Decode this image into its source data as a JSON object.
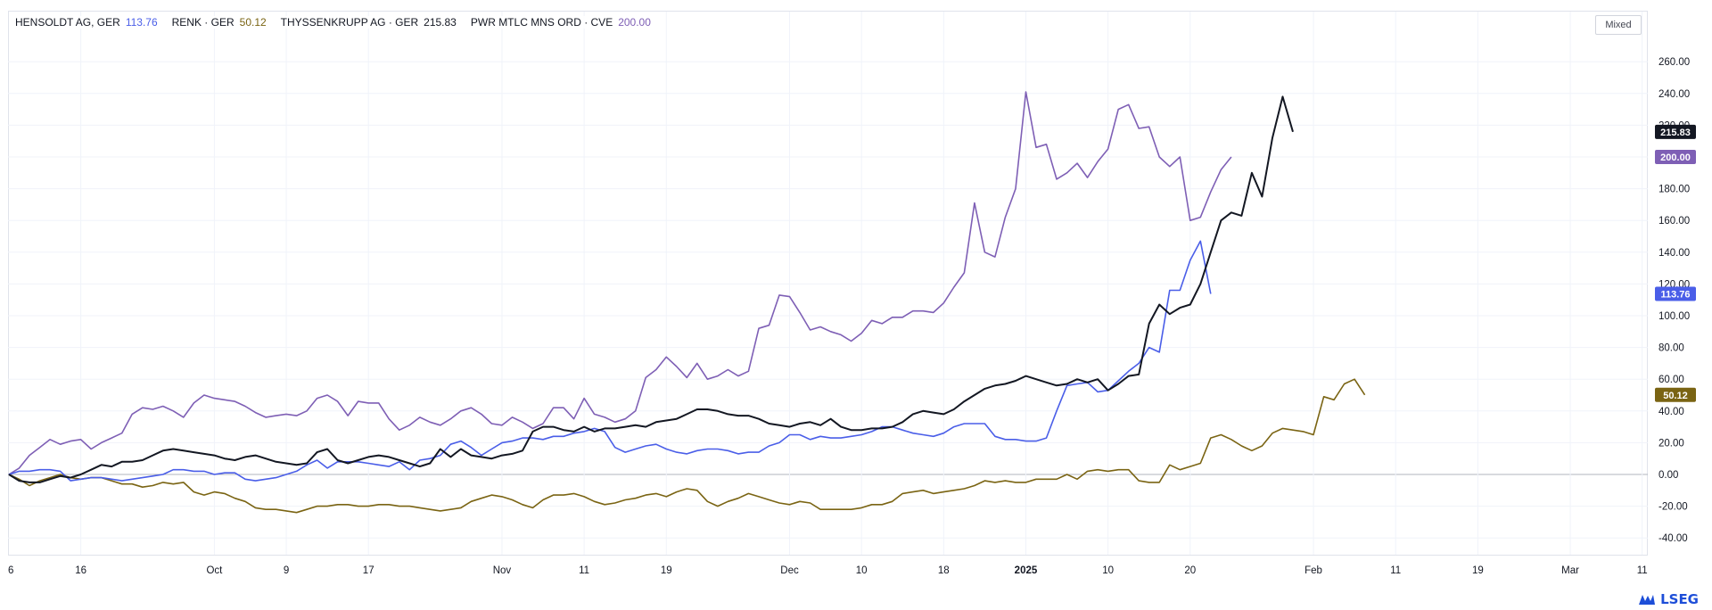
{
  "chart_data": {
    "type": "line",
    "scale_mode": "Mixed",
    "y_unit": "percent change",
    "ylim": [
      -50,
      275
    ],
    "y_ticks": [
      260,
      240,
      220,
      200,
      180,
      160,
      140,
      120,
      100,
      80,
      60,
      40,
      20,
      0,
      -20,
      -40
    ],
    "y_tick_labels": [
      "260.00",
      "240.00",
      "220.00",
      "200.00",
      "180.00",
      "160.00",
      "140.00",
      "120.00",
      "100.00",
      "80.00",
      "60.00",
      "40.00",
      "20.00",
      "0.00",
      "-20.00",
      "-40.00"
    ],
    "x_index_range": [
      -3,
      155
    ],
    "x_ticks": [
      {
        "label": "6",
        "index": -2,
        "bold": false
      },
      {
        "label": "16",
        "index": 7,
        "bold": false
      },
      {
        "label": "Oct",
        "index": 20,
        "bold": false
      },
      {
        "label": "9",
        "index": 27,
        "bold": false
      },
      {
        "label": "17",
        "index": 35,
        "bold": false
      },
      {
        "label": "Nov",
        "index": 48,
        "bold": false
      },
      {
        "label": "11",
        "index": 56,
        "bold": false
      },
      {
        "label": "19",
        "index": 64,
        "bold": false
      },
      {
        "label": "Dec",
        "index": 76,
        "bold": false
      },
      {
        "label": "10",
        "index": 83,
        "bold": false
      },
      {
        "label": "18",
        "index": 91,
        "bold": false
      },
      {
        "label": "2025",
        "index": 99,
        "bold": true
      },
      {
        "label": "10",
        "index": 107,
        "bold": false
      },
      {
        "label": "20",
        "index": 115,
        "bold": false
      },
      {
        "label": "Feb",
        "index": 127,
        "bold": false
      },
      {
        "label": "11",
        "index": 135,
        "bold": false
      },
      {
        "label": "19",
        "index": 143,
        "bold": false
      },
      {
        "label": "Mar",
        "index": 152,
        "bold": false
      },
      {
        "label": "11",
        "index": 159,
        "bold": false
      }
    ],
    "series": [
      {
        "name": "HENSOLDT AG, GER",
        "last_label": "113.76",
        "color": "#4a5ee8",
        "values": [
          0,
          2,
          2,
          3,
          3,
          2,
          -4,
          -3,
          -2,
          -2,
          -3,
          -4,
          -3,
          -2,
          -1,
          0,
          3,
          3,
          2,
          2,
          0,
          1,
          1,
          -3,
          -4,
          -3,
          -2,
          0,
          2,
          6,
          9,
          4,
          8,
          8,
          8,
          7,
          6,
          5,
          8,
          3,
          9,
          10,
          12,
          19,
          21,
          17,
          12,
          16,
          20,
          21,
          23,
          23,
          22,
          24,
          24,
          26,
          27,
          29,
          27,
          17,
          14,
          16,
          18,
          19,
          16,
          14,
          13,
          15,
          16,
          16,
          15,
          13,
          14,
          14,
          18,
          20,
          25,
          25,
          22,
          24,
          23,
          23,
          24,
          25,
          27,
          30,
          30,
          28,
          26,
          25,
          24,
          26,
          30,
          32,
          32,
          32,
          24,
          22,
          22,
          21,
          21,
          23,
          40,
          56,
          57,
          58,
          52,
          53,
          59,
          65,
          70,
          80,
          77,
          116,
          116,
          135,
          147,
          113.76
        ]
      },
      {
        "name": "RENK · GER",
        "last_label": "50.12",
        "color": "#7a6413",
        "values": [
          0,
          -3,
          -7,
          -4,
          -2,
          0,
          -2,
          -3,
          -2,
          -2,
          -4,
          -6,
          -6,
          -8,
          -7,
          -5,
          -6,
          -5,
          -11,
          -13,
          -11,
          -12,
          -15,
          -17,
          -21,
          -22,
          -22,
          -23,
          -24,
          -22,
          -20,
          -20,
          -19,
          -19,
          -20,
          -20,
          -19,
          -19,
          -20,
          -20,
          -21,
          -22,
          -23,
          -22,
          -21,
          -17,
          -15,
          -13,
          -14,
          -16,
          -19,
          -21,
          -16,
          -13,
          -13,
          -12,
          -14,
          -17,
          -19,
          -18,
          -16,
          -15,
          -13,
          -12,
          -14,
          -11,
          -9,
          -10,
          -17,
          -20,
          -17,
          -15,
          -12,
          -14,
          -16,
          -18,
          -19,
          -17,
          -18,
          -22,
          -22,
          -22,
          -22,
          -21,
          -19,
          -19,
          -17,
          -12,
          -11,
          -10,
          -12,
          -11,
          -10,
          -9,
          -7,
          -4,
          -5,
          -4,
          -5,
          -5,
          -3,
          -3,
          -3,
          0,
          -3,
          2,
          3,
          2,
          3,
          3,
          -4,
          -5,
          -5,
          6,
          3,
          5,
          7,
          23,
          25,
          22,
          18,
          15,
          18,
          26,
          29,
          28,
          27,
          25,
          49,
          47,
          57,
          60,
          50.12
        ]
      },
      {
        "name": "THYSSENKRUPP AG · GER",
        "last_label": "215.83",
        "color": "#131722",
        "values": [
          0,
          -4,
          -5,
          -5,
          -3,
          -1,
          -2,
          0,
          3,
          6,
          5,
          8,
          8,
          9,
          12,
          15,
          16,
          15,
          14,
          13,
          12,
          10,
          9,
          11,
          12,
          10,
          8,
          7,
          6,
          7,
          14,
          16,
          9,
          7,
          9,
          11,
          12,
          11,
          9,
          7,
          5,
          7,
          16,
          11,
          16,
          12,
          11,
          10,
          12,
          13,
          15,
          27,
          30,
          30,
          28,
          27,
          30,
          27,
          29,
          29,
          30,
          31,
          30,
          33,
          34,
          35,
          38,
          41,
          41,
          40,
          38,
          37,
          37,
          35,
          32,
          31,
          30,
          32,
          33,
          31,
          35,
          30,
          28,
          28,
          29,
          29,
          30,
          33,
          38,
          40,
          39,
          38,
          41,
          46,
          50,
          54,
          56,
          57,
          59,
          62,
          60,
          58,
          56,
          57,
          60,
          58,
          60,
          53,
          57,
          62,
          63,
          95,
          107,
          101,
          105,
          107,
          120,
          140,
          160,
          165,
          163,
          190,
          175,
          212,
          238,
          215.83
        ]
      },
      {
        "name": "PWR MTLC MNS ORD · CVE",
        "last_label": "200.00",
        "color": "#7e5fb5",
        "values": [
          0,
          4,
          12,
          17,
          22,
          19,
          21,
          22,
          16,
          20,
          23,
          26,
          38,
          42,
          41,
          43,
          40,
          36,
          45,
          50,
          48,
          47,
          46,
          43,
          39,
          36,
          37,
          38,
          37,
          40,
          48,
          50,
          46,
          37,
          46,
          45,
          45,
          35,
          28,
          31,
          36,
          33,
          31,
          35,
          40,
          42,
          38,
          32,
          31,
          36,
          33,
          29,
          32,
          42,
          42,
          35,
          48,
          38,
          36,
          33,
          35,
          40,
          61,
          66,
          74,
          68,
          61,
          70,
          60,
          62,
          66,
          62,
          65,
          92,
          94,
          113,
          112,
          102,
          91,
          93,
          90,
          88,
          84,
          89,
          97,
          95,
          99,
          99,
          103,
          103,
          102,
          108,
          118,
          127,
          171,
          140,
          137,
          162,
          180,
          241,
          206,
          208,
          186,
          190,
          196,
          187,
          197,
          205,
          230,
          233,
          218,
          219,
          200,
          194,
          200,
          160,
          162,
          178,
          192,
          200.0
        ]
      }
    ]
  },
  "scale_mode_label": "Mixed",
  "brand": "LSEG"
}
